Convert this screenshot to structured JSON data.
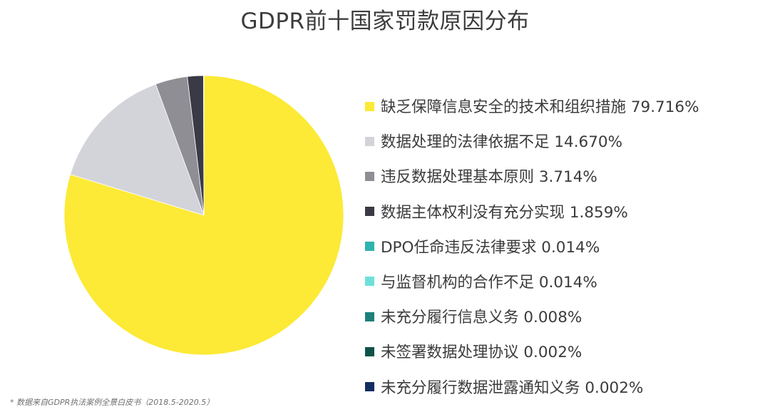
{
  "chart_data": {
    "type": "pie",
    "title": "GDPR前十国家罚款原因分布",
    "slices": [
      {
        "label": "缺乏保障信息安全的技术和组织措施",
        "value": 79.716,
        "display": "79.716%",
        "color": "#fcea36"
      },
      {
        "label": "数据处理的法律依据不足",
        "value": 14.67,
        "display": "14.670%",
        "color": "#d3d4da"
      },
      {
        "label": "违反数据处理基本原则",
        "value": 3.714,
        "display": "3.714%",
        "color": "#8e8e94"
      },
      {
        "label": "数据主体权利没有充分实现",
        "value": 1.859,
        "display": "1.859%",
        "color": "#3a3a46"
      },
      {
        "label": "DPO任命违反法律要求",
        "value": 0.014,
        "display": "0.014%",
        "color": "#2fb3ae"
      },
      {
        "label": "与监督机构的合作不足",
        "value": 0.014,
        "display": "0.014%",
        "color": "#6fe0d8"
      },
      {
        "label": "未充分履行信息义务",
        "value": 0.008,
        "display": "0.008%",
        "color": "#1f807b"
      },
      {
        "label": "未签署数据处理协议",
        "value": 0.002,
        "display": "0.002%",
        "color": "#0f5248"
      },
      {
        "label": "未充分履行数据泄露通知义务",
        "value": 0.002,
        "display": "0.002%",
        "color": "#132d63"
      }
    ],
    "legend_position": "right"
  },
  "legend_gaps": [
    " ",
    " ",
    " ",
    " ",
    " ",
    " ",
    " ",
    " ",
    " "
  ],
  "footnote": "* 数据来自GDPR执法案例全景白皮书（2018.5-2020.5）"
}
